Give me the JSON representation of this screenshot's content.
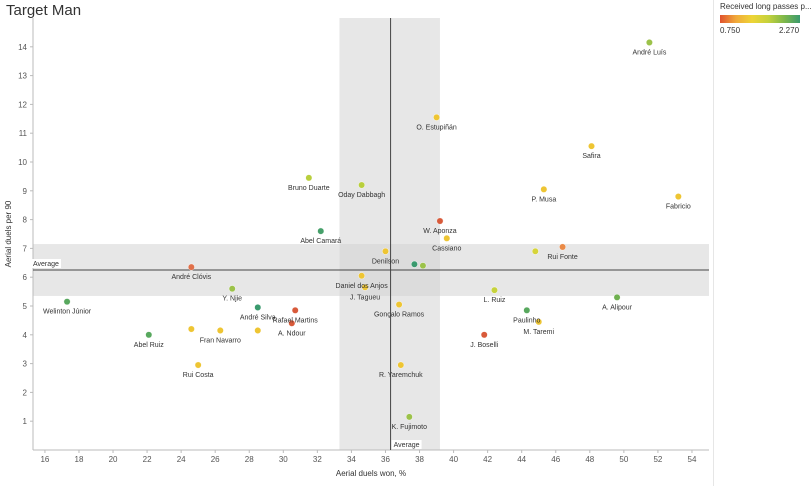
{
  "page": {
    "title": "Target Man"
  },
  "legend": {
    "title": "Received long passes p...",
    "min_label": "0.750",
    "max_label": "2.270",
    "colors": [
      "#e0522e",
      "#f0a93a",
      "#eed436",
      "#c6d23c",
      "#7fb84a",
      "#3a9a6e"
    ]
  },
  "chart_data": {
    "type": "scatter",
    "title": "Target Man",
    "xlabel": "Aerial duels won, %",
    "ylabel": "Aerial duels per 90",
    "xlim": [
      15.3,
      55
    ],
    "ylim": [
      0,
      15
    ],
    "x_ticks": [
      "16",
      "18",
      "20",
      "22",
      "24",
      "26",
      "28",
      "30",
      "32",
      "34",
      "36",
      "38",
      "40",
      "42",
      "44",
      "46",
      "48",
      "50",
      "52",
      "54"
    ],
    "y_ticks": [
      "1",
      "2",
      "3",
      "4",
      "5",
      "6",
      "7",
      "8",
      "9",
      "10",
      "11",
      "12",
      "13",
      "14"
    ],
    "grid": false,
    "color_scale": {
      "field": "Received long passes per 90",
      "min": 0.75,
      "max": 2.27
    },
    "reference_lines": {
      "x_average": 36.3,
      "y_average": 6.25,
      "x_band": [
        33.3,
        39.2
      ],
      "y_band": [
        5.35,
        7.15
      ],
      "x_average_label": "Average",
      "y_average_label": "Average"
    },
    "points": [
      {
        "label": "André Luís",
        "x": 51.5,
        "y": 14.15,
        "color": "#9cc24a"
      },
      {
        "label": "O. Estupiñán",
        "x": 39.0,
        "y": 11.55,
        "color": "#eec533"
      },
      {
        "label": "Safira",
        "x": 48.1,
        "y": 10.55,
        "color": "#eec533"
      },
      {
        "label": "Bruno Duarte",
        "x": 31.5,
        "y": 9.45,
        "color": "#b9cf3d"
      },
      {
        "label": "Oday Dabbagh",
        "x": 34.6,
        "y": 9.2,
        "color": "#b9cf3d"
      },
      {
        "label": "P. Musa",
        "x": 45.3,
        "y": 9.05,
        "color": "#eec533"
      },
      {
        "label": "Fabricio",
        "x": 53.2,
        "y": 8.8,
        "color": "#eec533"
      },
      {
        "label": "W. Aponza",
        "x": 39.2,
        "y": 7.95,
        "color": "#d85a3a"
      },
      {
        "label": "Abel Camará",
        "x": 32.2,
        "y": 7.6,
        "color": "#46a06a"
      },
      {
        "label": "Cassiano",
        "x": 39.6,
        "y": 7.35,
        "color": "#eec533"
      },
      {
        "label": "Rui Fonte",
        "x": 46.4,
        "y": 7.05,
        "color": "#ea8a47"
      },
      {
        "label": "Denilson",
        "x": 36.0,
        "y": 6.9,
        "color": "#eec533"
      },
      {
        "label": "",
        "x": 44.8,
        "y": 6.9,
        "color": "#d6d43a"
      },
      {
        "label": "",
        "x": 37.7,
        "y": 6.45,
        "color": "#3a9a6e"
      },
      {
        "label": "",
        "x": 38.2,
        "y": 6.4,
        "color": "#9cc24a"
      },
      {
        "label": "André Clóvis",
        "x": 24.6,
        "y": 6.35,
        "color": "#e0704a"
      },
      {
        "label": "Daniel dos Anjos",
        "x": 34.6,
        "y": 6.05,
        "color": "#eec533"
      },
      {
        "label": "J. Tagueu",
        "x": 34.8,
        "y": 5.65,
        "color": "#eec533"
      },
      {
        "label": "Y. Njie",
        "x": 27.0,
        "y": 5.6,
        "color": "#9cc24a"
      },
      {
        "label": "L. Ruiz",
        "x": 42.4,
        "y": 5.55,
        "color": "#c6d23c"
      },
      {
        "label": "A. Alipour",
        "x": 49.6,
        "y": 5.3,
        "color": "#6fb050"
      },
      {
        "label": "Welinton Júnior",
        "x": 17.3,
        "y": 5.15,
        "color": "#58a85e"
      },
      {
        "label": "Gonçalo Ramos",
        "x": 36.8,
        "y": 5.05,
        "color": "#eec533"
      },
      {
        "label": "André Silva",
        "x": 28.5,
        "y": 4.95,
        "color": "#3a9a6e"
      },
      {
        "label": "Rafael Martins",
        "x": 30.7,
        "y": 4.85,
        "color": "#d85a3a"
      },
      {
        "label": "Paulinho",
        "x": 44.3,
        "y": 4.85,
        "color": "#58a85e"
      },
      {
        "label": "M. Taremi",
        "x": 45.0,
        "y": 4.45,
        "color": "#eec533"
      },
      {
        "label": "A. Ndour",
        "x": 30.5,
        "y": 4.4,
        "color": "#d85a3a"
      },
      {
        "label": "",
        "x": 24.6,
        "y": 4.2,
        "color": "#eec533"
      },
      {
        "label": "Fran Navarro",
        "x": 26.3,
        "y": 4.15,
        "color": "#eec533"
      },
      {
        "label": "",
        "x": 28.5,
        "y": 4.15,
        "color": "#eec533"
      },
      {
        "label": "J. Boselli",
        "x": 41.8,
        "y": 4.0,
        "color": "#d85a3a"
      },
      {
        "label": "Abel Ruiz",
        "x": 22.1,
        "y": 4.0,
        "color": "#58a85e"
      },
      {
        "label": "Rui Costa",
        "x": 25.0,
        "y": 2.95,
        "color": "#eec533"
      },
      {
        "label": "R. Yaremchuk",
        "x": 36.9,
        "y": 2.95,
        "color": "#eec533"
      },
      {
        "label": "K. Fujimoto",
        "x": 37.4,
        "y": 1.15,
        "color": "#9cc24a"
      }
    ]
  }
}
